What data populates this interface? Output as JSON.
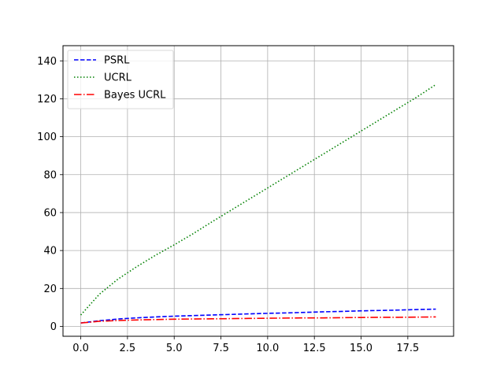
{
  "chart_data": {
    "type": "line",
    "title": "",
    "xlabel": "",
    "ylabel": "",
    "xlim": [
      -0.95,
      19.95
    ],
    "ylim": [
      -5.2,
      148
    ],
    "grid": true,
    "legend_position": "top-left",
    "x_ticks": [
      0.0,
      2.5,
      5.0,
      7.5,
      10.0,
      12.5,
      15.0,
      17.5
    ],
    "x_tick_labels": [
      "0.0",
      "2.5",
      "5.0",
      "7.5",
      "10.0",
      "12.5",
      "15.0",
      "17.5"
    ],
    "y_ticks": [
      0,
      20,
      40,
      60,
      80,
      100,
      120,
      140
    ],
    "y_tick_labels": [
      "0",
      "20",
      "40",
      "60",
      "80",
      "100",
      "120",
      "140"
    ],
    "x": [
      0,
      1,
      2,
      3,
      4,
      5,
      6,
      7,
      8,
      9,
      10,
      11,
      12,
      13,
      14,
      15,
      16,
      17,
      18,
      19
    ],
    "series": [
      {
        "name": "PSRL",
        "color": "#0000ff",
        "style": "dashed",
        "values": [
          1.8,
          3.0,
          3.9,
          4.5,
          5.0,
          5.4,
          5.7,
          6.0,
          6.3,
          6.6,
          6.9,
          7.1,
          7.4,
          7.7,
          7.9,
          8.2,
          8.4,
          8.6,
          8.9,
          9.1
        ]
      },
      {
        "name": "UCRL",
        "color": "#008000",
        "style": "dotted",
        "values": [
          6.0,
          17.0,
          25.0,
          31.5,
          37.5,
          43.0,
          48.8,
          55.0,
          61.0,
          67.0,
          73.0,
          79.0,
          85.0,
          91.0,
          97.0,
          103.0,
          109.0,
          115.0,
          121.0,
          127.5
        ]
      },
      {
        "name": "Bayes UCRL",
        "color": "#ff0000",
        "style": "dashdot",
        "values": [
          1.8,
          2.7,
          3.1,
          3.4,
          3.6,
          3.8,
          3.9,
          4.0,
          4.1,
          4.2,
          4.3,
          4.4,
          4.5,
          4.5,
          4.6,
          4.7,
          4.8,
          4.8,
          4.9,
          5.0
        ]
      }
    ]
  }
}
